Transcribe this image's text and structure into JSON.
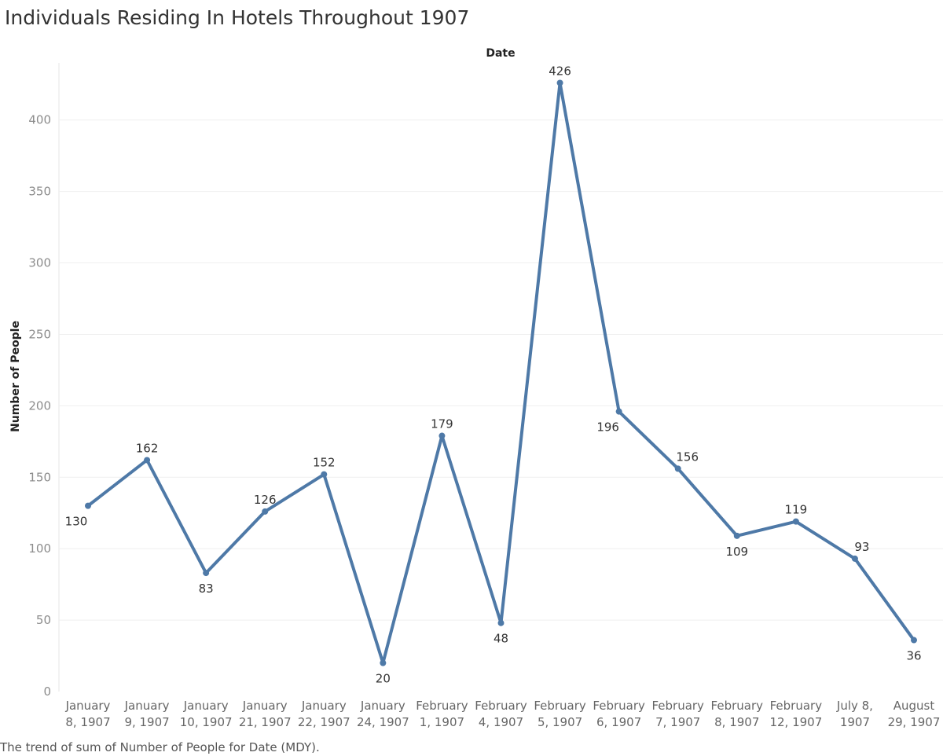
{
  "chart_data": {
    "type": "line",
    "title": "Individuals Residing In Hotels Throughout 1907",
    "xlabel": "Date",
    "ylabel": "Number of People",
    "caption": "The trend of sum of Number of People for Date (MDY).",
    "categories": [
      [
        "January",
        "8, 1907"
      ],
      [
        "January",
        "9, 1907"
      ],
      [
        "January",
        "10, 1907"
      ],
      [
        "January",
        "21, 1907"
      ],
      [
        "January",
        "22, 1907"
      ],
      [
        "January",
        "24, 1907"
      ],
      [
        "February",
        "1, 1907"
      ],
      [
        "February",
        "4, 1907"
      ],
      [
        "February",
        "5, 1907"
      ],
      [
        "February",
        "6, 1907"
      ],
      [
        "February",
        "7, 1907"
      ],
      [
        "February",
        "8, 1907"
      ],
      [
        "February",
        "12, 1907"
      ],
      [
        "July 8,",
        "1907"
      ],
      [
        "August",
        "29, 1907"
      ]
    ],
    "values": [
      130,
      162,
      83,
      126,
      152,
      20,
      179,
      48,
      426,
      196,
      156,
      109,
      119,
      93,
      36
    ],
    "label_position": [
      "below",
      "above",
      "below",
      "above",
      "above",
      "below",
      "above",
      "below",
      "above",
      "below",
      "above",
      "below",
      "above",
      "above",
      "below"
    ],
    "yticks": [
      0,
      50,
      100,
      150,
      200,
      250,
      300,
      350,
      400
    ],
    "ylim": [
      0,
      440
    ],
    "grid": true,
    "line_color": "#4e79a7"
  }
}
